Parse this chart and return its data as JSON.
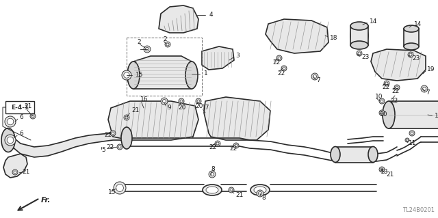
{
  "bg_color": "#ffffff",
  "diagram_code": "TL24B0201",
  "line_color": "#2a2a2a",
  "label_color": "#1a1a1a",
  "parts_color": "#dddddd",
  "stroke_color": "#333333"
}
